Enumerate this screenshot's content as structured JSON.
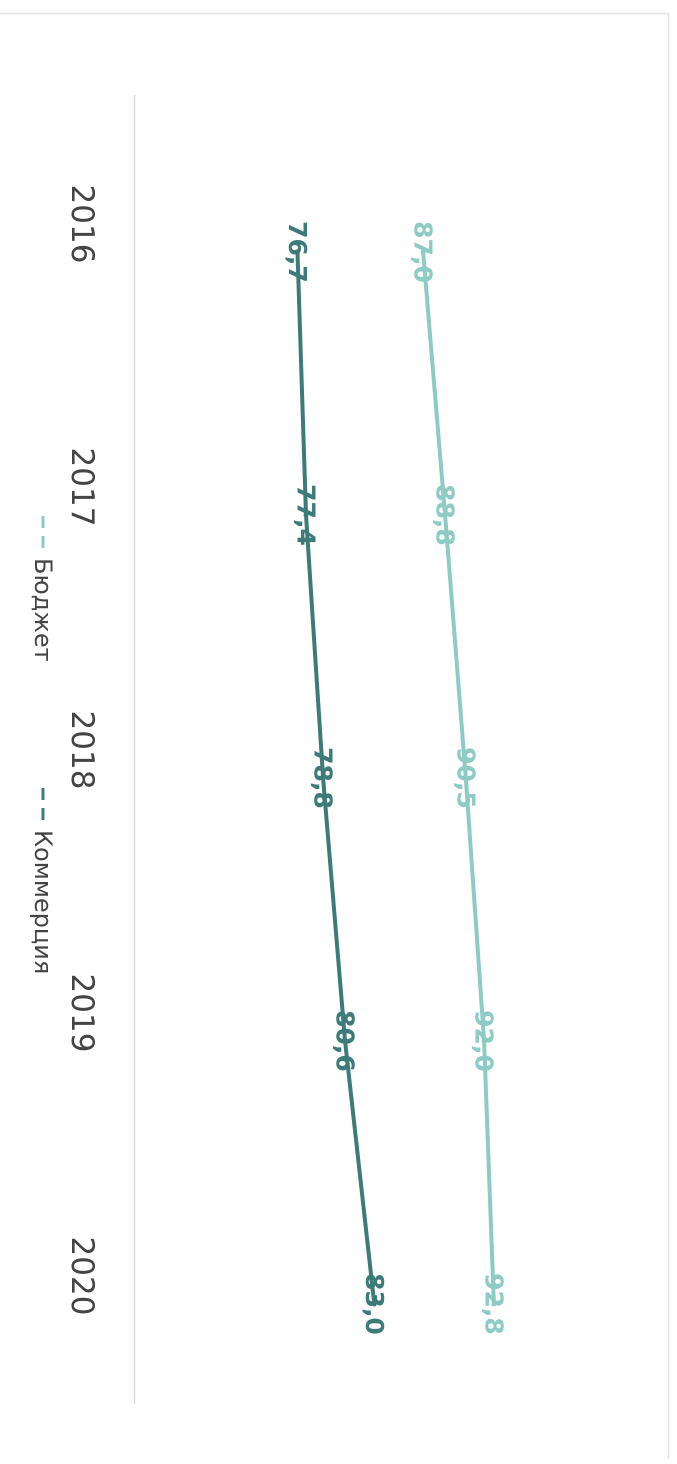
{
  "chart_data": {
    "type": "line",
    "categories": [
      "2016",
      "2017",
      "2018",
      "2019",
      "2020"
    ],
    "series": [
      {
        "name": "Бюджет",
        "values": [
          87.0,
          88.8,
          90.5,
          92.0,
          92.8
        ],
        "labels": [
          "87,0",
          "88,8",
          "90,5",
          "92,0",
          "92,8"
        ],
        "color": "#8ecbc4"
      },
      {
        "name": "Коммерция",
        "values": [
          76.7,
          77.4,
          78.8,
          80.6,
          83.0
        ],
        "labels": [
          "76,7",
          "77,4",
          "78,8",
          "80,6",
          "83,0"
        ],
        "color": "#3d7b79"
      }
    ],
    "ylim": [
      63.3,
      101.5
    ],
    "grid": false,
    "legend_position": "bottom",
    "orientation": "rotated-90-clockwise"
  }
}
